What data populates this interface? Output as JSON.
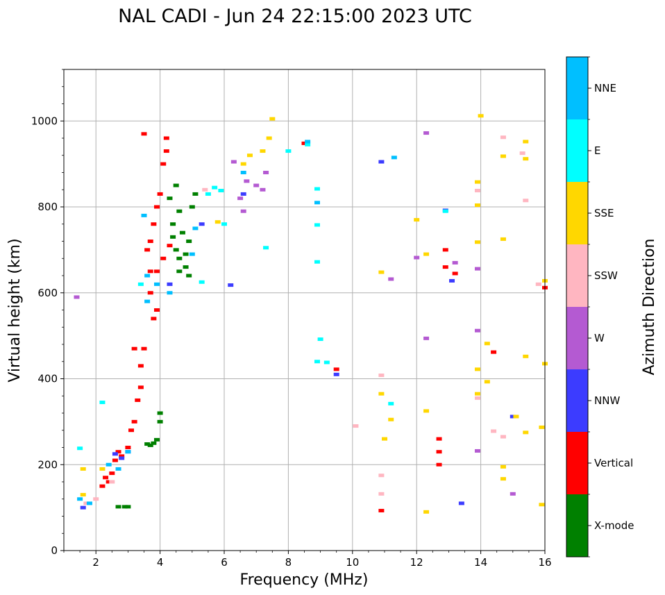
{
  "chart_data": {
    "type": "scatter",
    "title": "NAL CADI - Jun 24 22:15:00 2023 UTC",
    "xlabel": "Frequency (MHz)",
    "ylabel": "Virtual height (km)",
    "xlim": [
      1.0,
      16.0
    ],
    "ylim": [
      0,
      1120
    ],
    "xticks": [
      2,
      4,
      6,
      8,
      10,
      12,
      14,
      16
    ],
    "yticks": [
      0,
      200,
      400,
      600,
      800,
      1000
    ],
    "grid": true,
    "colorbar": {
      "title": "Azimuth Direction",
      "categories": [
        {
          "name": "X-mode",
          "color": "#008000"
        },
        {
          "name": "Vertical",
          "color": "#ff0000"
        },
        {
          "name": "NNW",
          "color": "#3c3cff"
        },
        {
          "name": "W",
          "color": "#b45ad2"
        },
        {
          "name": "SSW",
          "color": "#ffb6c1"
        },
        {
          "name": "SSE",
          "color": "#ffd700"
        },
        {
          "name": "E",
          "color": "#00ffff"
        },
        {
          "name": "NNE",
          "color": "#00bfff"
        }
      ]
    },
    "series": [
      {
        "name": "X-mode",
        "points": [
          [
            2.7,
            102
          ],
          [
            2.9,
            102
          ],
          [
            3.0,
            102
          ],
          [
            3.6,
            248
          ],
          [
            3.7,
            245
          ],
          [
            3.8,
            250
          ],
          [
            3.9,
            258
          ],
          [
            4.0,
            300
          ],
          [
            4.0,
            320
          ],
          [
            4.4,
            760
          ],
          [
            4.5,
            700
          ],
          [
            4.6,
            680
          ],
          [
            4.6,
            650
          ],
          [
            4.7,
            740
          ],
          [
            4.8,
            690
          ],
          [
            4.8,
            660
          ],
          [
            4.9,
            720
          ],
          [
            5.0,
            800
          ],
          [
            5.1,
            830
          ],
          [
            4.3,
            820
          ],
          [
            4.5,
            850
          ],
          [
            4.9,
            640
          ],
          [
            4.6,
            790
          ],
          [
            4.4,
            730
          ]
        ]
      },
      {
        "name": "Vertical",
        "points": [
          [
            2.2,
            150
          ],
          [
            2.3,
            170
          ],
          [
            2.4,
            160
          ],
          [
            2.5,
            180
          ],
          [
            2.6,
            210
          ],
          [
            2.7,
            230
          ],
          [
            2.8,
            220
          ],
          [
            3.0,
            240
          ],
          [
            3.1,
            280
          ],
          [
            3.2,
            300
          ],
          [
            3.3,
            350
          ],
          [
            3.4,
            380
          ],
          [
            3.4,
            430
          ],
          [
            3.5,
            470
          ],
          [
            3.2,
            470
          ],
          [
            3.8,
            540
          ],
          [
            3.9,
            560
          ],
          [
            3.7,
            600
          ],
          [
            3.7,
            650
          ],
          [
            3.6,
            700
          ],
          [
            3.7,
            720
          ],
          [
            3.8,
            760
          ],
          [
            3.9,
            800
          ],
          [
            4.0,
            830
          ],
          [
            4.1,
            900
          ],
          [
            4.2,
            930
          ],
          [
            4.2,
            960
          ],
          [
            3.5,
            970
          ],
          [
            3.9,
            650
          ],
          [
            4.1,
            680
          ],
          [
            4.3,
            710
          ],
          [
            12.7,
            200
          ],
          [
            12.7,
            230
          ],
          [
            12.7,
            260
          ],
          [
            12.9,
            660
          ],
          [
            12.9,
            700
          ],
          [
            13.2,
            645
          ],
          [
            9.5,
            422
          ],
          [
            10.9,
            93
          ],
          [
            14.4,
            462
          ],
          [
            16.0,
            612
          ],
          [
            8.5,
            948
          ]
        ]
      },
      {
        "name": "NNW",
        "points": [
          [
            2.6,
            225
          ],
          [
            2.8,
            215
          ],
          [
            3.0,
            230
          ],
          [
            1.6,
            100
          ],
          [
            6.2,
            618
          ],
          [
            9.5,
            410
          ],
          [
            10.9,
            905
          ],
          [
            13.4,
            110
          ],
          [
            15.0,
            312
          ],
          [
            13.1,
            628
          ],
          [
            12.9,
            792
          ],
          [
            4.3,
            620
          ],
          [
            6.6,
            830
          ],
          [
            5.3,
            760
          ]
        ]
      },
      {
        "name": "W",
        "points": [
          [
            1.4,
            590
          ],
          [
            6.5,
            820
          ],
          [
            6.6,
            790
          ],
          [
            6.7,
            860
          ],
          [
            7.0,
            850
          ],
          [
            7.2,
            840
          ],
          [
            7.3,
            880
          ],
          [
            11.2,
            632
          ],
          [
            12.3,
            972
          ],
          [
            12.3,
            494
          ],
          [
            12.0,
            682
          ],
          [
            13.9,
            512
          ],
          [
            13.9,
            232
          ],
          [
            13.9,
            656
          ],
          [
            15.0,
            132
          ],
          [
            13.2,
            670
          ],
          [
            6.3,
            905
          ]
        ]
      },
      {
        "name": "SSW",
        "points": [
          [
            1.7,
            110
          ],
          [
            2.0,
            120
          ],
          [
            2.5,
            160
          ],
          [
            10.1,
            290
          ],
          [
            10.9,
            175
          ],
          [
            10.9,
            132
          ],
          [
            10.9,
            408
          ],
          [
            13.9,
            355
          ],
          [
            14.4,
            278
          ],
          [
            14.7,
            265
          ],
          [
            14.7,
            962
          ],
          [
            15.3,
            925
          ],
          [
            15.4,
            815
          ],
          [
            15.8,
            620
          ],
          [
            13.9,
            838
          ],
          [
            5.4,
            840
          ]
        ]
      },
      {
        "name": "SSE",
        "points": [
          [
            1.6,
            130
          ],
          [
            1.6,
            190
          ],
          [
            2.2,
            190
          ],
          [
            6.6,
            900
          ],
          [
            6.8,
            920
          ],
          [
            7.2,
            930
          ],
          [
            7.4,
            960
          ],
          [
            7.5,
            1005
          ],
          [
            5.8,
            765
          ],
          [
            10.9,
            648
          ],
          [
            10.9,
            365
          ],
          [
            11.0,
            260
          ],
          [
            11.2,
            305
          ],
          [
            12.3,
            90
          ],
          [
            12.3,
            325
          ],
          [
            13.9,
            858
          ],
          [
            13.9,
            804
          ],
          [
            13.9,
            718
          ],
          [
            13.9,
            422
          ],
          [
            13.9,
            365
          ],
          [
            14.0,
            1012
          ],
          [
            14.2,
            482
          ],
          [
            14.2,
            393
          ],
          [
            14.7,
            725
          ],
          [
            14.7,
            918
          ],
          [
            14.7,
            195
          ],
          [
            14.7,
            167
          ],
          [
            15.1,
            312
          ],
          [
            15.4,
            952
          ],
          [
            15.4,
            912
          ],
          [
            15.4,
            275
          ],
          [
            15.4,
            452
          ],
          [
            15.9,
            287
          ],
          [
            15.9,
            107
          ],
          [
            16.0,
            628
          ],
          [
            16.0,
            435
          ],
          [
            12.0,
            770
          ],
          [
            12.3,
            690
          ]
        ]
      },
      {
        "name": "E",
        "points": [
          [
            1.5,
            238
          ],
          [
            2.2,
            345
          ],
          [
            3.4,
            620
          ],
          [
            5.5,
            830
          ],
          [
            5.7,
            845
          ],
          [
            5.9,
            838
          ],
          [
            6.0,
            760
          ],
          [
            8.0,
            930
          ],
          [
            8.6,
            945
          ],
          [
            8.9,
            842
          ],
          [
            8.9,
            758
          ],
          [
            8.9,
            672
          ],
          [
            8.9,
            440
          ],
          [
            9.0,
            492
          ],
          [
            9.2,
            438
          ],
          [
            11.2,
            342
          ],
          [
            12.9,
            790
          ],
          [
            7.3,
            705
          ],
          [
            5.3,
            625
          ]
        ]
      },
      {
        "name": "NNE",
        "points": [
          [
            1.5,
            120
          ],
          [
            1.8,
            110
          ],
          [
            2.4,
            200
          ],
          [
            2.7,
            190
          ],
          [
            3.0,
            230
          ],
          [
            3.5,
            780
          ],
          [
            3.6,
            580
          ],
          [
            3.6,
            640
          ],
          [
            3.9,
            620
          ],
          [
            4.3,
            600
          ],
          [
            5.0,
            690
          ],
          [
            5.1,
            750
          ],
          [
            6.6,
            880
          ],
          [
            8.9,
            810
          ],
          [
            11.3,
            915
          ],
          [
            8.6,
            952
          ]
        ]
      }
    ]
  }
}
